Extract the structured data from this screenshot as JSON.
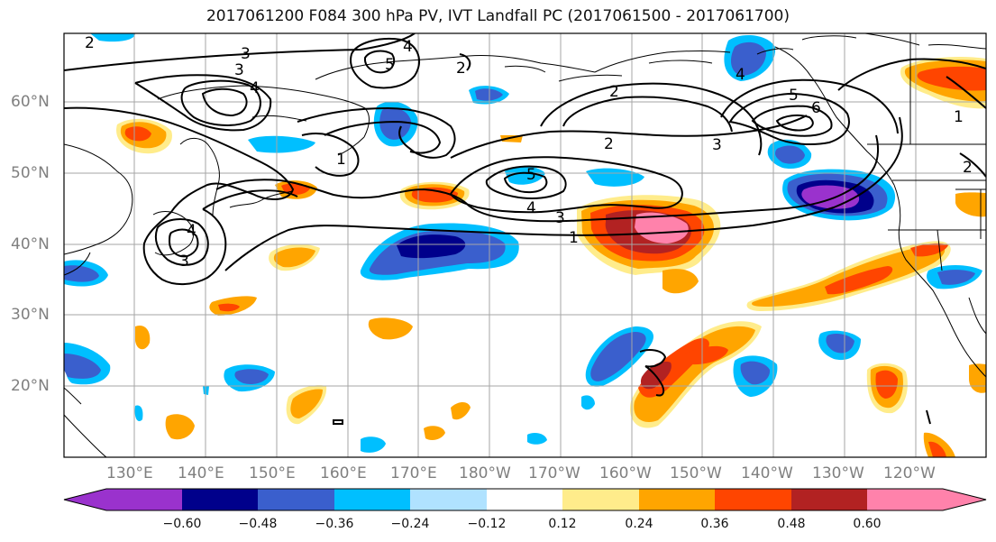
{
  "title": "2017061200 F084 300 hPa PV, IVT Landfall PC (2017061500 - 2017061700)",
  "axes": {
    "lat_ticks": [
      "60°N",
      "50°N",
      "40°N",
      "30°N",
      "20°N"
    ],
    "lon_ticks": [
      "130°E",
      "140°E",
      "150°E",
      "160°E",
      "170°E",
      "180°W",
      "170°W",
      "160°W",
      "150°W",
      "140°W",
      "130°W",
      "120°W"
    ]
  },
  "colorbar": {
    "levels": [
      "−0.60",
      "−0.48",
      "−0.36",
      "−0.24",
      "−0.12",
      "0.12",
      "0.24",
      "0.36",
      "0.48",
      "0.60"
    ],
    "colors": [
      "#9a32cd",
      "#00008b",
      "#3a5fcd",
      "#00bfff",
      "#b0e2ff",
      "#ffffff",
      "#ffec8b",
      "#ffa500",
      "#ff4500",
      "#b22222",
      "#ff82ab"
    ]
  },
  "contour_labels": [
    "2",
    "3",
    "3",
    "4",
    "4",
    "5",
    "2",
    "2",
    "1",
    "5",
    "4",
    "3",
    "1",
    "4",
    "4",
    "3",
    "3",
    "2",
    "2",
    "1",
    "5",
    "6",
    "3",
    "1",
    "2",
    "2"
  ]
}
